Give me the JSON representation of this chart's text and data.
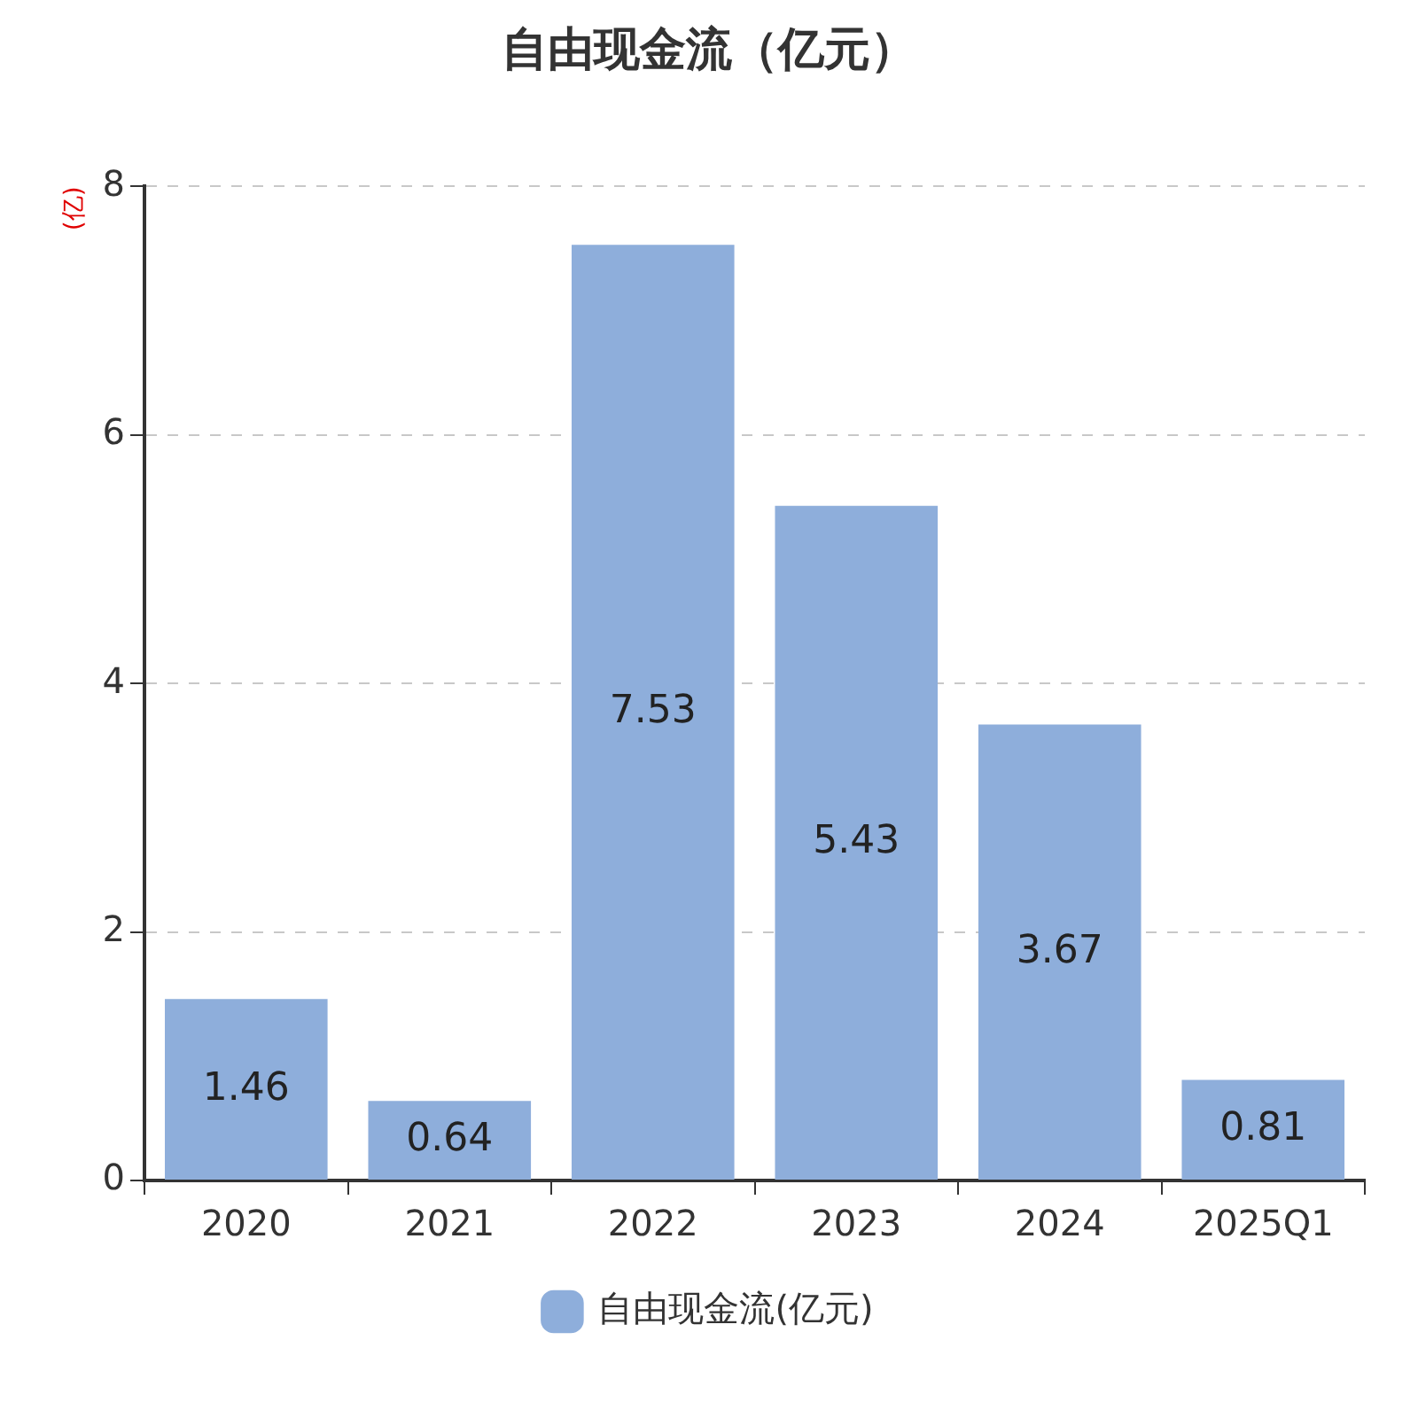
{
  "chart_data": {
    "type": "bar",
    "title": "自由现金流（亿元）",
    "ylabel": "(亿)",
    "categories": [
      "2020",
      "2021",
      "2022",
      "2023",
      "2024",
      "2025Q1"
    ],
    "series": [
      {
        "name": "自由现金流(亿元)",
        "color": "#8eaedb",
        "values": [
          1.46,
          0.64,
          7.53,
          5.43,
          3.67,
          0.81
        ]
      }
    ],
    "ylim": [
      0,
      8
    ],
    "yticks": [
      0,
      2,
      4,
      6,
      8
    ],
    "grid": "y",
    "legend": "bottom",
    "data_labels": true
  }
}
